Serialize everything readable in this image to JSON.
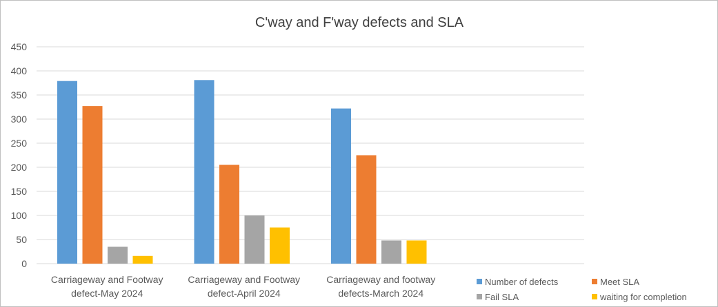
{
  "chart_data": {
    "type": "bar",
    "title": "C'way and F'way defects and SLA",
    "categories": [
      [
        "Carriageway and Footway",
        "defect-May 2024"
      ],
      [
        "Carriageway and Footway",
        "defect-April 2024"
      ],
      [
        "Carriageway and footway",
        "defects-March 2024"
      ]
    ],
    "series": [
      {
        "name": "Number of defects",
        "color": "#5B9BD5",
        "values": [
          379,
          381,
          322
        ]
      },
      {
        "name": "Meet SLA",
        "color": "#ED7D31",
        "values": [
          327,
          205,
          225
        ]
      },
      {
        "name": "Fail SLA",
        "color": "#A5A5A5",
        "values": [
          35,
          100,
          48
        ]
      },
      {
        "name": "waiting for completion",
        "color": "#FFC000",
        "values": [
          16,
          75,
          48
        ]
      }
    ],
    "ylim": [
      0,
      450
    ],
    "yticks": [
      0,
      50,
      100,
      150,
      200,
      250,
      300,
      350,
      400,
      450
    ],
    "grid": true,
    "legend_position": "bottom-right",
    "xlabel": "",
    "ylabel": ""
  }
}
